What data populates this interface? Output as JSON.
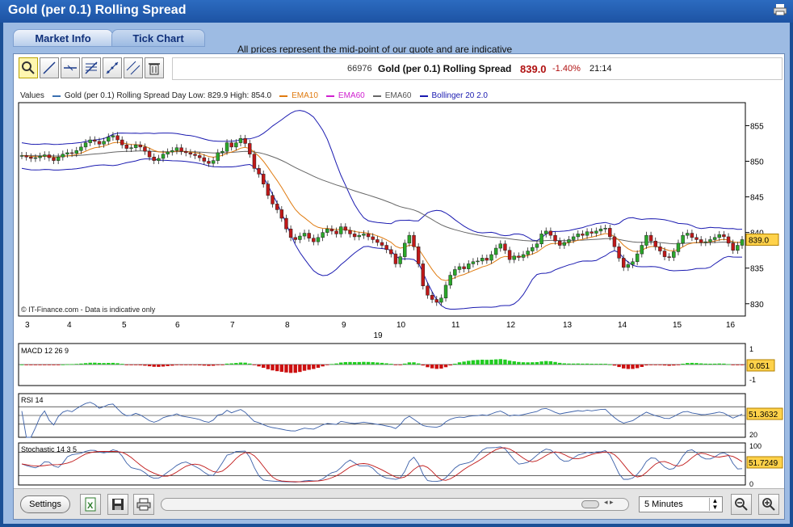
{
  "window": {
    "title": "Gold (per 0.1) Rolling Spread"
  },
  "tabs": [
    {
      "label": "Market Info"
    },
    {
      "label": "Tick Chart"
    }
  ],
  "notice": "All prices represent the mid-point of our quote and are indicative",
  "quote": {
    "code": "66976",
    "name": "Gold (per 0.1) Rolling Spread",
    "price": "839.0",
    "change": "-1.40%",
    "time": "21:14"
  },
  "legend": {
    "values": "Values",
    "items": [
      {
        "label": "Gold (per 0.1) Rolling Spread   Day Low: 829.9  High: 854.0",
        "color": "#3a6fb0"
      },
      {
        "label": "EMA10",
        "color": "#e07b10"
      },
      {
        "label": "EMA60",
        "color": "#d020d0"
      },
      {
        "label": "EMA60",
        "color": "#666666"
      },
      {
        "label": "Bollinger 20  2.0",
        "color": "#1a1ab0"
      }
    ]
  },
  "chart_data": [
    {
      "type": "candlestick",
      "title": "",
      "x_ticks": [
        "3",
        "4",
        "5",
        "6",
        "7",
        "8",
        "9",
        "10",
        "11",
        "12",
        "13",
        "14",
        "15",
        "16"
      ],
      "x_sublabel": "19",
      "y_ticks": [
        830,
        835,
        840,
        845,
        850,
        855
      ],
      "ylim": [
        828.5,
        858
      ],
      "current_value": "839.0",
      "watermark": "© IT-Finance.com - Data is indicative only",
      "close": [
        850.8,
        850.6,
        850.4,
        850.5,
        850.7,
        850.9,
        850.5,
        850.1,
        850.6,
        851.0,
        851.2,
        851.1,
        851.5,
        852.0,
        852.6,
        853.0,
        852.8,
        852.4,
        852.8,
        853.4,
        853.6,
        853.0,
        852.3,
        851.8,
        851.9,
        852.3,
        852.0,
        851.4,
        850.6,
        850.1,
        850.4,
        851.0,
        851.3,
        851.5,
        851.9,
        851.4,
        851.2,
        851.0,
        850.8,
        850.5,
        850.0,
        849.7,
        850.1,
        851.2,
        851.4,
        852.6,
        852.0,
        852.6,
        853.2,
        852.5,
        851.0,
        849.0,
        848.2,
        846.8,
        845.2,
        844.0,
        843.2,
        842.0,
        840.5,
        839.3,
        839.0,
        839.5,
        839.9,
        839.2,
        838.7,
        839.3,
        840.0,
        840.5,
        840.2,
        839.8,
        840.8,
        840.3,
        839.8,
        839.4,
        839.6,
        839.8,
        839.4,
        839.0,
        838.6,
        838.2,
        837.6,
        837.0,
        835.6,
        836.6,
        838.5,
        839.6,
        838.0,
        835.6,
        832.5,
        831.2,
        830.6,
        830.2,
        830.8,
        832.6,
        834.0,
        834.8,
        835.2,
        834.9,
        835.6,
        835.9,
        836.0,
        836.4,
        836.1,
        836.9,
        837.8,
        838.4,
        837.5,
        836.2,
        836.7,
        836.5,
        836.9,
        837.4,
        837.9,
        838.4,
        839.8,
        840.2,
        839.6,
        838.8,
        838.2,
        838.6,
        839.0,
        839.4,
        839.8,
        839.6,
        840.1,
        839.9,
        840.2,
        840.5,
        840.6,
        839.4,
        838.0,
        836.4,
        835.1,
        835.5,
        835.9,
        837.0,
        838.2,
        839.6,
        838.8,
        838.0,
        837.4,
        836.6,
        836.5,
        837.3,
        838.5,
        839.6,
        839.9,
        839.3,
        839.0,
        838.6,
        838.7,
        839.0,
        839.3,
        839.7,
        839.4,
        838.5,
        837.5,
        838.2,
        839.0
      ]
    },
    {
      "type": "bar",
      "title": "MACD 12 26 9",
      "y_ticks": [
        "1",
        "-1"
      ],
      "current_value": "0.051"
    },
    {
      "type": "line",
      "title": "RSI 14",
      "y_ticks": [
        "20"
      ],
      "current_value": "51.3632"
    },
    {
      "type": "line",
      "title": "Stochastic 14 3 5",
      "y_ticks": [
        "100",
        "0"
      ],
      "current_value": "51.7249"
    }
  ],
  "bottom": {
    "settings": "Settings",
    "interval": "5 Minutes"
  },
  "icons": [
    "zoom-icon",
    "trend-line-icon",
    "horizontal-line-icon",
    "fib-icon",
    "regression-icon",
    "channel-icon",
    "trash-icon",
    "excel-icon",
    "save-icon",
    "print-icon",
    "zoom-out-icon",
    "zoom-in-icon"
  ]
}
